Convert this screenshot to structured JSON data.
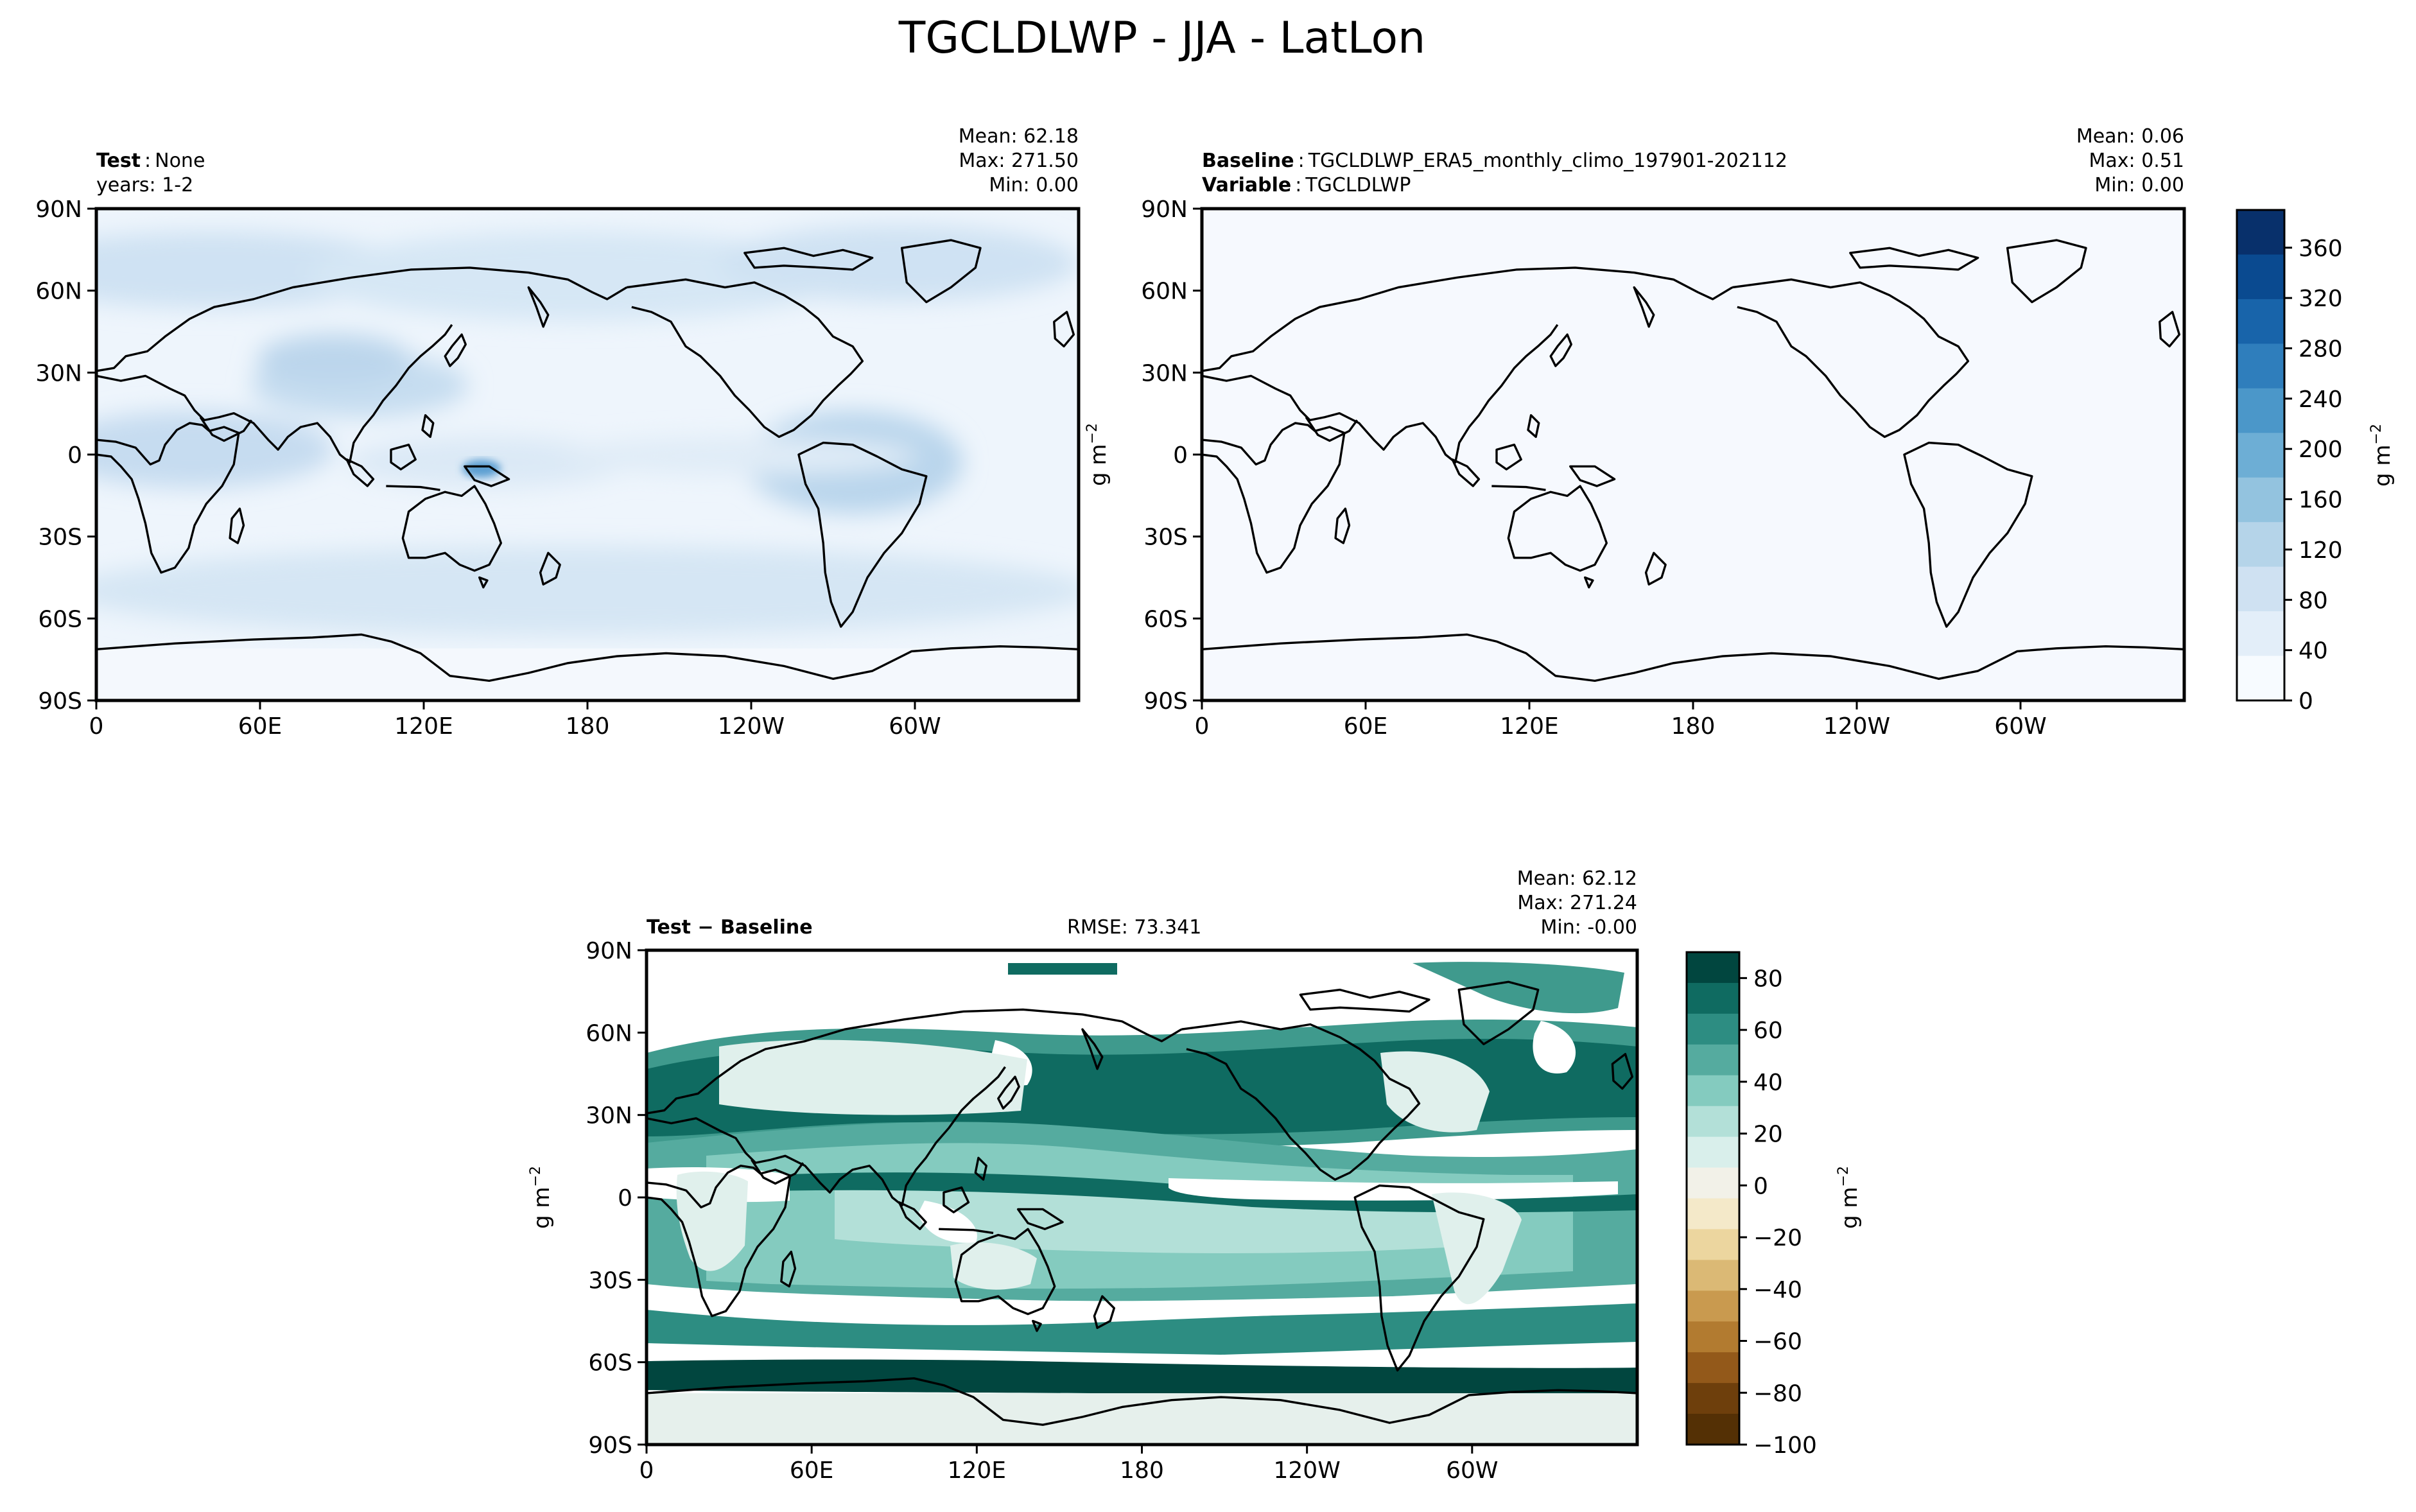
{
  "title": "TGCLDLWP - JJA - LatLon",
  "lat_ticks": [
    "90N",
    "60N",
    "30N",
    "0",
    "30S",
    "60S",
    "90S"
  ],
  "lon_ticks": [
    "0",
    "60E",
    "120E",
    "180",
    "120W",
    "60W"
  ],
  "panels": {
    "test": {
      "label_bold": "Test",
      "label_value": "None",
      "years": "years: 1-2",
      "stats": {
        "mean": "Mean: 62.18",
        "max": "Max: 271.50",
        "min": "Min:  0.00"
      }
    },
    "baseline": {
      "label_bold": "Baseline",
      "label_value": "TGCLDLWP_ERA5_monthly_climo_197901-202112",
      "variable_bold": "Variable",
      "variable_value": "TGCLDLWP",
      "stats": {
        "mean": "Mean:  0.06",
        "max": "Max:  0.51",
        "min": "Min:  0.00"
      },
      "ylabel": "g m",
      "ylabel_sup": "−2"
    },
    "diff": {
      "label": "Test − Baseline",
      "rmse": "RMSE: 73.341",
      "stats": {
        "mean": "Mean: 62.12",
        "max": "Max: 271.24",
        "min": "Min: -0.00"
      },
      "ylabel": "g m",
      "ylabel_sup": "−2"
    }
  },
  "colorbar_top": {
    "ticks": [
      "0",
      "40",
      "80",
      "120",
      "160",
      "200",
      "240",
      "280",
      "320",
      "360"
    ],
    "label": "g m",
    "label_sup": "−2",
    "colormap": "Blues",
    "colors": [
      "#f7fbff",
      "#e3eef9",
      "#cfe1f2",
      "#b5d4e9",
      "#93c3df",
      "#6daed5",
      "#4b97c9",
      "#2f7ebc",
      "#1864aa",
      "#0a4a90",
      "#08306b"
    ]
  },
  "colorbar_diff": {
    "ticks": [
      "80",
      "60",
      "40",
      "20",
      "0",
      "−20",
      "−40",
      "−60",
      "−80",
      "−100"
    ],
    "label": "g m",
    "label_sup": "−2",
    "colormap": "BrBG",
    "colors": [
      "#01463f",
      "#0f6b61",
      "#2d8d82",
      "#55ab9f",
      "#84cbbf",
      "#b3e0d8",
      "#d9efeb",
      "#f2f1e8",
      "#f4e9c9",
      "#ecd69f",
      "#dbb975",
      "#c99a4f",
      "#b27b30",
      "#93591a",
      "#6e3f0c",
      "#543005"
    ]
  },
  "chart_data": [
    {
      "type": "heatmap",
      "title": "Test: None (years: 1-2)",
      "variable": "TGCLDLWP",
      "units": "g m^-2",
      "mean": 62.18,
      "max": 271.5,
      "min": 0.0,
      "color_range": [
        0,
        390
      ]
    },
    {
      "type": "heatmap",
      "title": "Baseline: TGCLDLWP_ERA5_monthly_climo_197901-202112",
      "variable": "TGCLDLWP",
      "units": "g m^-2",
      "mean": 0.06,
      "max": 0.51,
      "min": 0.0,
      "color_range": [
        0,
        390
      ]
    },
    {
      "type": "heatmap",
      "title": "Test − Baseline",
      "variable": "TGCLDLWP",
      "units": "g m^-2",
      "mean": 62.12,
      "max": 271.24,
      "min": -0.0,
      "rmse": 73.341,
      "color_range": [
        -100,
        90
      ]
    }
  ]
}
